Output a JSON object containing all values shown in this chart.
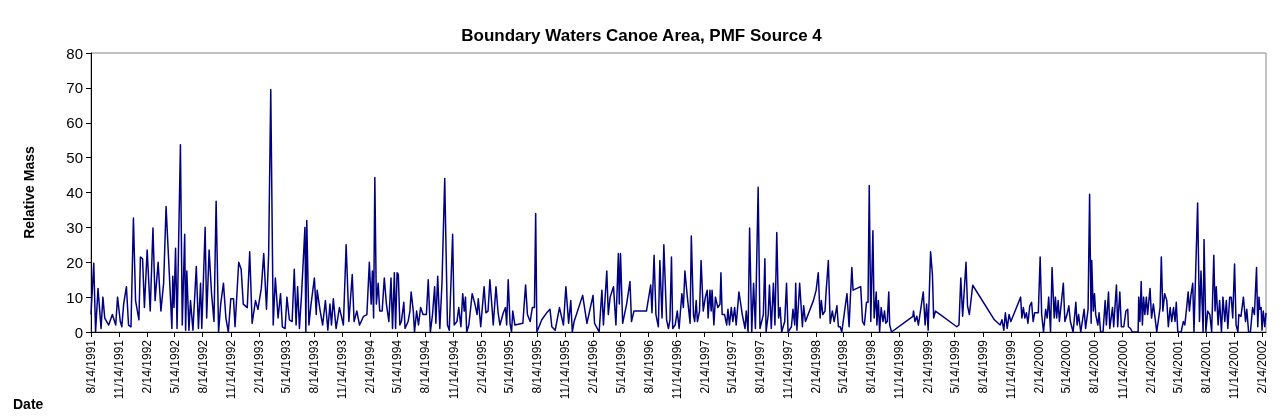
{
  "chart_data": {
    "type": "line",
    "title": "Boundary Waters Canoe Area, PMF Source 4",
    "xlabel": "Date",
    "ylabel": "Relative Mass",
    "xlim": [
      "1991-08-14",
      "2002-02-27"
    ],
    "xticks": [
      {
        "value": "1991-08-14",
        "label": "8/14/1991"
      },
      {
        "value": "1991-11-14",
        "label": "11/14/1991"
      },
      {
        "value": "1992-02-14",
        "label": "2/14/1992"
      },
      {
        "value": "1992-05-14",
        "label": "5/14/1992"
      },
      {
        "value": "1992-08-14",
        "label": "8/14/1992"
      },
      {
        "value": "1992-11-14",
        "label": "11/14/1992"
      },
      {
        "value": "1993-02-14",
        "label": "2/14/1993"
      },
      {
        "value": "1993-05-14",
        "label": "5/14/1993"
      },
      {
        "value": "1993-08-14",
        "label": "8/14/1993"
      },
      {
        "value": "1993-11-14",
        "label": "11/14/1993"
      },
      {
        "value": "1994-02-14",
        "label": "2/14/1994"
      },
      {
        "value": "1994-05-14",
        "label": "5/14/1994"
      },
      {
        "value": "1994-08-14",
        "label": "8/14/1994"
      },
      {
        "value": "1994-11-14",
        "label": "11/14/1994"
      },
      {
        "value": "1995-02-14",
        "label": "2/14/1995"
      },
      {
        "value": "1995-05-14",
        "label": "5/14/1995"
      },
      {
        "value": "1995-08-14",
        "label": "8/14/1995"
      },
      {
        "value": "1995-11-14",
        "label": "11/14/1995"
      },
      {
        "value": "1996-02-14",
        "label": "2/14/1996"
      },
      {
        "value": "1996-05-14",
        "label": "5/14/1996"
      },
      {
        "value": "1996-08-14",
        "label": "8/14/1996"
      },
      {
        "value": "1996-11-14",
        "label": "11/14/1996"
      },
      {
        "value": "1997-02-14",
        "label": "2/14/1997"
      },
      {
        "value": "1997-05-14",
        "label": "5/14/1997"
      },
      {
        "value": "1997-08-14",
        "label": "8/14/1997"
      },
      {
        "value": "1997-11-14",
        "label": "11/14/1997"
      },
      {
        "value": "1998-02-14",
        "label": "2/14/1998"
      },
      {
        "value": "1998-05-14",
        "label": "5/14/1998"
      },
      {
        "value": "1998-08-14",
        "label": "8/14/1998"
      },
      {
        "value": "1998-11-14",
        "label": "11/14/1998"
      },
      {
        "value": "1999-02-14",
        "label": "2/14/1999"
      },
      {
        "value": "1999-05-14",
        "label": "5/14/1999"
      },
      {
        "value": "1999-08-14",
        "label": "8/14/1999"
      },
      {
        "value": "1999-11-14",
        "label": "11/14/1999"
      },
      {
        "value": "2000-02-14",
        "label": "2/14/2000"
      },
      {
        "value": "2000-05-14",
        "label": "5/14/2000"
      },
      {
        "value": "2000-08-14",
        "label": "8/14/2000"
      },
      {
        "value": "2000-11-14",
        "label": "11/14/2000"
      },
      {
        "value": "2001-02-14",
        "label": "2/14/2001"
      },
      {
        "value": "2001-05-14",
        "label": "5/14/2001"
      },
      {
        "value": "2001-08-14",
        "label": "8/14/2001"
      },
      {
        "value": "2001-11-14",
        "label": "11/14/2001"
      },
      {
        "value": "2002-02-14",
        "label": "2/14/2002"
      }
    ],
    "ylim": [
      0,
      80
    ],
    "yticks": [
      0,
      10,
      20,
      30,
      40,
      50,
      60,
      70,
      80
    ],
    "marker": "none",
    "line_style": "solid",
    "series": [
      {
        "color": "#000080",
        "x": [
          "1991-08-14",
          "1991-08-23",
          "1991-08-29",
          "1991-09-06",
          "1991-09-16",
          "1991-09-22",
          "1991-09-28",
          "1991-10-11",
          "1991-10-23",
          "1991-11-03",
          "1991-11-09",
          "1991-11-18",
          "1991-11-23",
          "1991-11-29",
          "1991-12-08",
          "1991-12-15",
          "1991-12-23",
          "1991-12-31",
          "1992-01-07",
          "1992-01-18",
          "1992-01-23",
          "1992-01-30",
          "1992-02-05",
          "1992-02-14",
          "1992-02-24",
          "1992-03-04",
          "1992-03-11",
          "1992-03-21",
          "1992-03-30",
          "1992-04-08",
          "1992-04-16",
          "1992-04-27",
          "1992-05-05",
          "1992-05-08",
          "1992-05-12",
          "1992-05-17",
          "1992-05-22",
          "1992-06-02",
          "1992-06-08",
          "1992-06-16",
          "1992-06-19",
          "1992-06-23",
          "1992-06-30",
          "1992-07-05",
          "1992-07-13",
          "1992-07-24",
          "1992-07-31",
          "1992-08-07",
          "1992-08-11",
          "1992-08-22",
          "1992-08-27",
          "1992-09-04",
          "1992-09-12",
          "1992-09-20",
          "1992-09-27",
          "1992-10-05",
          "1992-10-12",
          "1992-10-21",
          "1992-10-29",
          "1992-11-06",
          "1992-11-14",
          "1992-11-23",
          "1992-11-28",
          "1992-12-10",
          "1992-12-18",
          "1992-12-25",
          "1993-01-07",
          "1993-01-15",
          "1993-01-23",
          "1993-02-03",
          "1993-02-11",
          "1993-02-22",
          "1993-03-02",
          "1993-03-11",
          "1993-03-18",
          "1993-03-25",
          "1993-04-02",
          "1993-04-09",
          "1993-04-18",
          "1993-04-26",
          "1993-05-02",
          "1993-05-11",
          "1993-05-17",
          "1993-05-25",
          "1993-06-03",
          "1993-06-10",
          "1993-06-16",
          "1993-06-21",
          "1993-06-27",
          "1993-07-04",
          "1993-07-15",
          "1993-07-18",
          "1993-07-21",
          "1993-07-28",
          "1993-08-04",
          "1993-08-15",
          "1993-08-21",
          "1993-08-24",
          "1993-09-03",
          "1993-09-11",
          "1993-09-20",
          "1993-09-28",
          "1993-10-05",
          "1993-10-10",
          "1993-10-16",
          "1993-10-25",
          "1993-11-05",
          "1993-11-18",
          "1993-11-27",
          "1993-12-06",
          "1993-12-17",
          "1993-12-23",
          "1994-01-01",
          "1994-01-10",
          "1994-01-23",
          "1994-02-03",
          "1994-02-11",
          "1994-02-17",
          "1994-02-21",
          "1994-02-25",
          "1994-03-01",
          "1994-03-06",
          "1994-03-12",
          "1994-03-17",
          "1994-03-25",
          "1994-04-01",
          "1994-04-08",
          "1994-04-16",
          "1994-04-23",
          "1994-04-28",
          "1994-05-04",
          "1994-05-08",
          "1994-05-13",
          "1994-05-17",
          "1994-05-22",
          "1994-05-27",
          "1994-06-04",
          "1994-06-08",
          "1994-06-18",
          "1994-06-24",
          "1994-06-28",
          "1994-07-05",
          "1994-07-09",
          "1994-07-16",
          "1994-07-22",
          "1994-07-29",
          "1994-08-06",
          "1994-08-17",
          "1994-08-23",
          "1994-08-30",
          "1994-09-06",
          "1994-09-13",
          "1994-09-17",
          "1994-09-23",
          "1994-09-30",
          "1994-10-07",
          "1994-10-16",
          "1994-10-25",
          "1994-10-31",
          "1994-11-11",
          "1994-11-16",
          "1994-11-25",
          "1994-12-01",
          "1994-12-08",
          "1994-12-14",
          "1994-12-19",
          "1994-12-23",
          "1994-12-27",
          "1995-01-03",
          "1995-01-14",
          "1995-01-23",
          "1995-01-30",
          "1995-02-03",
          "1995-02-11",
          "1995-02-22",
          "1995-02-28",
          "1995-03-07",
          "1995-03-13",
          "1995-03-20",
          "1995-03-24",
          "1995-04-02",
          "1995-04-09",
          "1995-04-15",
          "1995-04-26",
          "1995-05-03",
          "1995-05-07",
          "1995-05-12",
          "1995-05-18",
          "1995-05-23",
          "1995-05-27",
          "1995-06-03",
          "1995-06-29",
          "1995-07-08",
          "1995-07-14",
          "1995-07-23",
          "1995-07-30",
          "1995-08-06",
          "1995-08-10",
          "1995-08-14",
          "1995-08-30",
          "1995-09-15",
          "1995-09-26",
          "1995-10-02",
          "1995-10-13",
          "1995-10-27",
          "1995-11-09",
          "1995-11-17",
          "1995-11-26",
          "1995-12-03",
          "1995-12-08",
          "1995-12-14",
          "1996-01-11",
          "1996-01-25",
          "1996-02-14",
          "1996-02-19",
          "1996-03-05",
          "1996-03-14",
          "1996-03-19",
          "1996-03-30",
          "1996-04-04",
          "1996-04-10",
          "1996-04-21",
          "1996-04-29",
          "1996-05-07",
          "1996-05-10",
          "1996-05-14",
          "1996-05-21",
          "1996-06-03",
          "1996-06-14",
          "1996-06-19",
          "1996-06-27",
          "1996-08-07",
          "1996-08-21",
          "1996-08-25",
          "1996-09-01",
          "1996-09-07",
          "1996-09-15",
          "1996-09-20",
          "1996-09-27",
          "1996-10-03",
          "1996-10-12",
          "1996-10-18",
          "1996-10-23",
          "1996-10-28",
          "1996-11-01",
          "1996-11-09",
          "1996-11-16",
          "1996-11-22",
          "1996-12-01",
          "1996-12-06",
          "1996-12-11",
          "1996-12-19",
          "1996-12-28",
          "1997-01-01",
          "1997-01-08",
          "1997-01-12",
          "1997-01-17",
          "1997-01-21",
          "1997-01-28",
          "1997-02-02",
          "1997-02-09",
          "1997-02-16",
          "1997-02-22",
          "1997-02-25",
          "1997-03-03",
          "1997-03-07",
          "1997-03-10",
          "1997-03-16",
          "1997-03-21",
          "1997-03-29",
          "1997-04-05",
          "1997-04-08",
          "1997-04-12",
          "1997-04-20",
          "1997-04-27",
          "1997-05-01",
          "1997-05-06",
          "1997-05-12",
          "1997-05-17",
          "1997-05-23",
          "1997-05-28",
          "1997-06-06",
          "1997-06-17",
          "1997-06-26",
          "1997-06-30",
          "1997-07-06",
          "1997-07-11",
          "1997-07-18",
          "1997-07-24",
          "1997-07-30",
          "1997-08-08",
          "1997-08-14",
          "1997-08-25",
          "1997-08-30",
          "1997-09-03",
          "1997-09-10",
          "1997-09-14",
          "1997-09-20",
          "1997-09-27",
          "1997-10-02",
          "1997-10-08",
          "1997-10-14",
          "1997-10-19",
          "1997-10-24",
          "1997-11-03",
          "1997-11-09",
          "1997-11-14",
          "1997-11-25",
          "1997-11-30",
          "1997-12-06",
          "1997-12-09",
          "1997-12-13",
          "1997-12-22",
          "1997-12-31",
          "1998-01-04",
          "1998-01-10",
          "1998-02-05",
          "1998-02-14",
          "1998-02-21",
          "1998-02-27",
          "1998-03-03",
          "1998-03-08",
          "1998-03-15",
          "1998-03-19",
          "1998-03-26",
          "1998-04-01",
          "1998-04-08",
          "1998-04-14",
          "1998-04-23",
          "1998-04-28",
          "1998-05-04",
          "1998-05-09",
          "1998-05-26",
          "1998-06-02",
          "1998-06-06",
          "1998-06-11",
          "1998-06-15",
          "1998-07-10",
          "1998-07-16",
          "1998-07-22",
          "1998-07-29",
          "1998-08-03",
          "1998-08-07",
          "1998-08-12",
          "1998-08-15",
          "1998-08-19",
          "1998-08-23",
          "1998-08-30",
          "1998-09-01",
          "1998-09-06",
          "1998-09-10",
          "1998-09-15",
          "1998-09-21",
          "1998-09-26",
          "1998-09-30",
          "1998-10-05",
          "1998-10-10",
          "1998-10-13",
          "1998-10-19",
          "1998-12-28",
          "1998-12-30",
          "1999-01-04",
          "1999-01-10",
          "1999-01-15",
          "1999-01-31",
          "1999-02-06",
          "1999-02-11",
          "1999-02-16",
          "1999-02-24",
          "1999-03-02",
          "1999-03-06",
          "1999-03-12",
          "1999-05-21",
          "1999-05-28",
          "1999-06-03",
          "1999-06-09",
          "1999-06-20",
          "1999-06-25",
          "1999-07-01",
          "1999-07-12",
          "1999-09-21",
          "1999-10-10",
          "1999-10-16",
          "1999-10-22",
          "1999-10-27",
          "1999-11-02",
          "1999-11-08",
          "1999-11-14",
          "1999-12-16",
          "1999-12-20",
          "1999-12-25",
          "1999-12-30",
          "2000-01-04",
          "2000-01-09",
          "2000-01-15",
          "2000-01-21",
          "2000-01-26",
          "2000-01-31",
          "2000-02-12",
          "2000-02-18",
          "2000-02-23",
          "2000-02-29",
          "2000-03-07",
          "2000-03-12",
          "2000-03-17",
          "2000-03-23",
          "2000-03-28",
          "2000-04-04",
          "2000-04-08",
          "2000-04-12",
          "2000-04-17",
          "2000-04-21",
          "2000-04-27",
          "2000-05-04",
          "2000-05-09",
          "2000-05-16",
          "2000-05-22",
          "2000-05-27",
          "2000-06-05",
          "2000-06-14",
          "2000-06-18",
          "2000-06-23",
          "2000-06-30",
          "2000-07-11",
          "2000-07-16",
          "2000-07-24",
          "2000-07-29",
          "2000-08-03",
          "2000-08-05",
          "2000-08-10",
          "2000-08-14",
          "2000-08-18",
          "2000-08-25",
          "2000-08-29",
          "2000-09-03",
          "2000-09-11",
          "2000-09-18",
          "2000-09-22",
          "2000-09-29",
          "2000-10-03",
          "2000-10-12",
          "2000-10-16",
          "2000-10-20",
          "2000-10-25",
          "2000-10-29",
          "2000-11-05",
          "2000-11-10",
          "2000-11-18",
          "2000-11-25",
          "2000-12-01",
          "2000-12-03",
          "2000-12-10",
          "2000-12-16",
          "2001-01-04",
          "2001-01-06",
          "2001-01-10",
          "2001-01-14",
          "2001-01-18",
          "2001-01-22",
          "2001-01-26",
          "2001-01-31",
          "2001-02-04",
          "2001-02-12",
          "2001-02-17",
          "2001-02-23",
          "2001-03-06",
          "2001-03-17",
          "2001-03-21",
          "2001-03-26",
          "2001-04-01",
          "2001-04-08",
          "2001-04-13",
          "2001-04-19",
          "2001-04-24",
          "2001-04-30",
          "2001-05-05",
          "2001-05-09",
          "2001-05-14",
          "2001-05-25",
          "2001-06-01",
          "2001-06-06",
          "2001-06-12",
          "2001-06-17",
          "2001-06-21",
          "2001-06-26",
          "2001-07-02",
          "2001-07-06",
          "2001-07-18",
          "2001-07-24",
          "2001-07-29",
          "2001-08-05",
          "2001-08-08",
          "2001-08-14",
          "2001-08-20",
          "2001-08-27",
          "2001-09-02",
          "2001-09-09",
          "2001-09-13",
          "2001-09-17",
          "2001-09-23",
          "2001-09-28",
          "2001-10-04",
          "2001-10-09",
          "2001-10-15",
          "2001-10-20",
          "2001-10-25",
          "2001-10-31",
          "2001-11-05",
          "2001-11-10",
          "2001-11-16",
          "2001-11-21",
          "2001-11-27",
          "2001-11-30",
          "2001-12-07",
          "2001-12-15",
          "2001-12-22",
          "2001-12-26",
          "2002-01-01",
          "2002-01-07",
          "2002-01-14",
          "2002-01-20",
          "2002-01-27",
          "2002-01-31",
          "2002-02-04",
          "2002-02-07",
          "2002-02-11",
          "2002-02-14",
          "2002-02-18",
          "2002-02-23",
          "2002-02-27"
        ],
        "values": [
          5,
          19.7,
          0,
          12.5,
          1,
          10,
          4,
          2,
          5,
          2,
          10,
          3,
          1.5,
          8,
          13,
          2,
          1.5,
          32.7,
          9,
          3.5,
          21.5,
          21,
          7,
          23.5,
          6,
          29.8,
          9,
          20,
          6,
          14,
          36,
          16,
          1,
          16,
          7,
          24,
          1,
          53.7,
          2,
          28,
          0.5,
          17.5,
          0.5,
          9,
          0.5,
          18.8,
          1,
          14,
          1,
          30,
          4,
          23.5,
          11,
          3,
          37.5,
          0,
          8,
          14,
          4,
          0,
          9.5,
          9.5,
          1.5,
          20,
          18,
          8,
          7,
          23,
          2.5,
          9,
          6.5,
          12.5,
          22.5,
          6.5,
          22,
          69.5,
          2,
          15.5,
          4,
          11,
          1.5,
          1,
          10,
          3.5,
          3,
          18,
          2,
          13,
          1,
          11,
          30,
          0,
          32,
          2,
          8,
          15.5,
          5,
          12,
          6,
          2,
          9,
          0.5,
          8,
          2,
          9.5,
          1,
          7,
          2,
          25,
          3,
          16.5,
          3,
          6,
          2,
          4.5,
          5,
          20,
          8,
          17.5,
          4,
          44.3,
          8,
          14,
          6,
          6,
          15.5,
          8,
          3,
          15.5,
          1,
          17,
          1,
          17,
          16.5,
          2,
          3,
          8.5,
          1,
          3,
          6,
          11.5,
          6,
          0,
          6,
          2,
          7,
          5,
          5,
          15,
          0,
          5,
          13,
          2.5,
          16,
          1,
          14,
          44,
          2,
          0.5,
          28,
          2,
          3,
          7,
          1.5,
          11,
          6,
          10,
          0,
          2,
          11,
          8,
          5,
          9.5,
          1.5,
          13,
          5.5,
          6,
          15,
          7,
          2,
          13,
          5.5,
          2,
          5.5,
          7,
          2,
          15,
          2.5,
          0,
          6,
          2,
          2.5,
          13.5,
          5,
          3,
          7,
          7,
          34,
          0,
          3.5,
          5.5,
          6.5,
          1.5,
          0.5,
          7,
          2,
          13,
          2.5,
          9,
          0,
          3,
          10.5,
          2.5,
          10.5,
          2.5,
          0,
          12,
          2,
          17.5,
          5,
          10,
          13,
          2,
          22.5,
          8,
          22.5,
          2.5,
          8,
          14.5,
          3,
          6,
          6,
          13.5,
          5.5,
          22,
          5,
          1.5,
          20.5,
          4,
          25,
          3.5,
          1,
          3.5,
          21.5,
          1,
          2,
          6,
          1,
          11,
          7,
          17.5,
          10,
          2.5,
          27.5,
          5,
          3,
          9,
          3,
          6,
          20.5,
          6,
          10,
          12,
          4,
          12,
          6,
          12,
          2,
          10,
          7,
          8,
          17,
          5,
          5,
          2,
          6.5,
          2,
          7,
          3,
          7,
          2,
          11.5,
          5,
          1,
          6,
          0,
          29.8,
          0,
          14,
          1,
          41.5,
          1,
          5,
          21,
          0,
          5,
          13.5,
          1,
          14,
          2,
          28.5,
          4,
          7,
          0,
          3,
          14,
          0,
          1.5,
          6.5,
          2,
          14,
          0.5,
          14,
          1.5,
          7.5,
          3,
          9,
          12,
          17,
          4,
          9,
          5,
          6,
          12,
          20.5,
          2.5,
          6,
          3,
          7.5,
          1.5,
          1.5,
          0,
          11,
          1.5,
          9.5,
          18.5,
          12,
          13,
          3,
          2,
          8.5,
          8.5,
          42,
          3,
          14,
          29,
          4,
          11.5,
          2,
          9,
          0,
          7,
          3,
          6,
          2.5,
          3,
          11.5,
          2,
          0,
          4.5,
          6,
          3,
          4.5,
          2,
          11.5,
          2,
          8,
          0.5,
          23,
          16.5,
          4,
          6,
          1.5,
          2,
          15.5,
          4.5,
          20,
          7.5,
          5,
          13.4,
          3.5,
          2,
          3.5,
          0.5,
          5.5,
          1,
          5,
          3,
          10,
          4,
          7,
          4,
          5.5,
          2.5,
          7.5,
          8.5,
          3,
          5.5,
          5.5,
          21.5,
          5,
          0,
          6.5,
          4,
          10,
          0,
          18.5,
          4,
          10,
          4,
          9,
          3,
          8,
          14,
          3,
          5,
          7.5,
          3,
          0,
          8.5,
          2,
          5,
          0,
          6.5,
          1,
          6.5,
          39.5,
          2.5,
          20.5,
          6,
          11,
          5,
          2,
          5.5,
          0,
          0,
          9,
          2,
          11.5,
          1,
          7,
          1.5,
          7,
          13.5,
          1.5,
          11.5,
          1.5,
          1.5,
          6,
          6.5,
          1.5,
          1,
          0,
          0,
          10,
          3,
          14.5,
          2,
          10,
          5,
          10,
          5,
          12.5,
          4,
          8,
          0,
          7,
          21.5,
          6,
          11,
          9,
          1.5,
          7,
          3,
          7,
          3,
          8.5,
          0,
          0,
          3,
          2,
          7,
          11.5,
          6,
          10.5,
          14,
          0,
          37,
          3,
          17.5,
          0,
          26.5,
          0,
          6,
          5,
          0,
          22,
          6,
          13,
          2,
          9,
          0,
          10,
          3,
          9,
          1,
          10,
          10,
          4,
          19.5,
          2,
          0,
          5,
          4.5,
          10,
          3,
          6.5,
          0,
          0,
          7,
          5,
          18.5,
          1.5,
          10,
          6.5,
          7,
          0.5,
          6,
          1.5,
          5.5
        ]
      }
    ]
  }
}
